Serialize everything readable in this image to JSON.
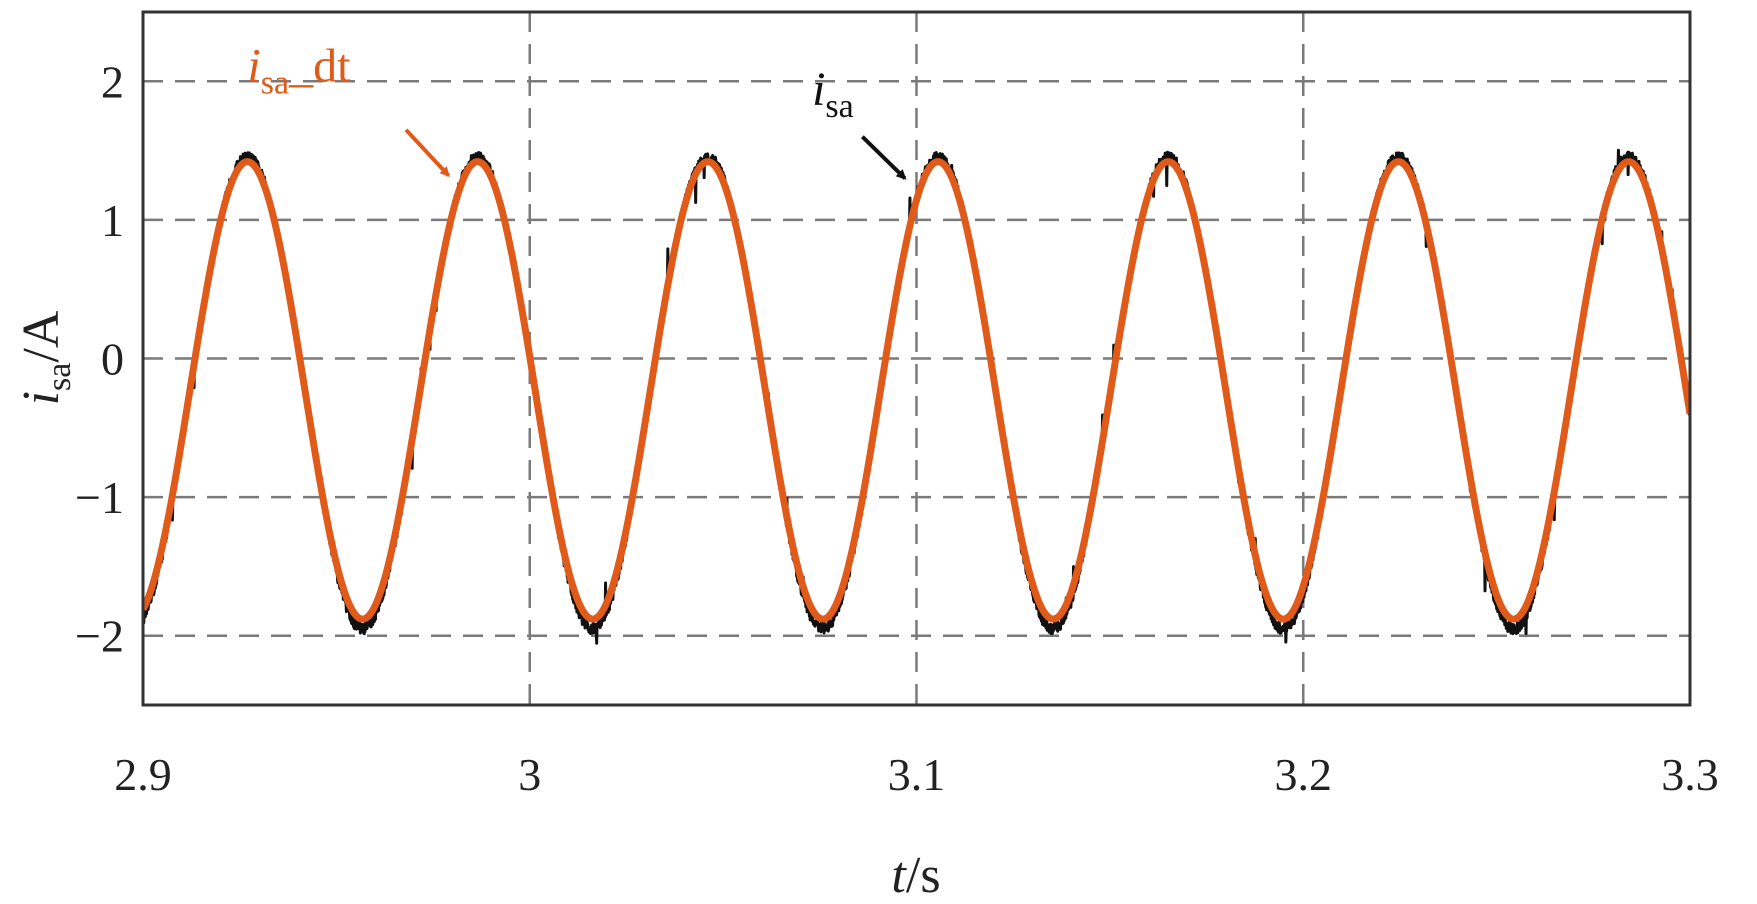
{
  "chart_data": {
    "type": "line",
    "xlabel": {
      "var": "t",
      "unit": "/s"
    },
    "ylabel": {
      "var": "i",
      "sub": "sa",
      "unit": "/A"
    },
    "xlim": [
      2.9,
      3.3
    ],
    "ylim": [
      -2.5,
      2.5
    ],
    "xticks": [
      2.9,
      3.0,
      3.1,
      3.2,
      3.3
    ],
    "xtick_labels": [
      "2.9",
      "3",
      "3.1",
      "3.2",
      "3.3"
    ],
    "yticks": [
      2,
      1,
      0,
      -1,
      -2
    ],
    "ytick_labels": [
      "2",
      "1",
      "0",
      "−1",
      "−2"
    ],
    "grid": true,
    "legend": "none",
    "series": [
      {
        "name": "i_sa",
        "color": "#111111",
        "shape": "sinusoid",
        "frequency_hz": 16.8,
        "amplitude": 1.7,
        "offset": -0.25,
        "max": 1.5,
        "min": -2.0,
        "peaks_t": [
          2.927,
          2.986,
          3.046,
          3.106,
          3.166,
          3.226,
          3.285
        ],
        "troughs_t": [
          2.957,
          3.016,
          3.076,
          3.136,
          3.196,
          3.256
        ],
        "value_at_2.9": -1.85,
        "value_at_3.3": 0.0,
        "noise": "high-frequency spikes up to about ±0.2 A"
      },
      {
        "name": "i_sa_dt",
        "color": "#E05A1A",
        "shape": "sinusoid",
        "frequency_hz": 16.8,
        "amplitude": 1.65,
        "offset": -0.23,
        "max": 1.45,
        "min": -1.9,
        "peaks_t": [
          2.927,
          2.986,
          3.046,
          3.106,
          3.166,
          3.226,
          3.285
        ],
        "troughs_t": [
          2.957,
          3.016,
          3.076,
          3.136,
          3.196,
          3.256
        ],
        "value_at_2.9": -1.85,
        "value_at_3.3": 0.0
      }
    ],
    "annotations": [
      {
        "label_main": "i",
        "label_sub": "sa",
        "label_suffix": "_dt",
        "color": "#E05A1A",
        "text_at": [
          2.927,
          2.0
        ],
        "arrow_from": [
          2.968,
          1.65
        ],
        "arrow_to": [
          2.979,
          1.32
        ]
      },
      {
        "label_main": "i",
        "label_sub": "sa",
        "label_suffix": "",
        "color": "#111111",
        "text_at": [
          3.073,
          1.83
        ],
        "arrow_from": [
          3.086,
          1.6
        ],
        "arrow_to": [
          3.097,
          1.3
        ]
      }
    ]
  }
}
